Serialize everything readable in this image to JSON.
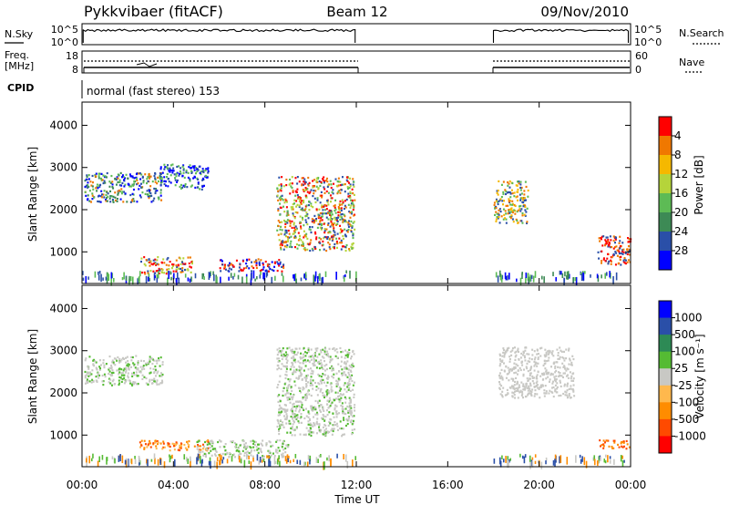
{
  "header": {
    "station": "Pykkvibaer (fitACF)",
    "beam": "Beam 12",
    "date": "09/Nov/2010"
  },
  "nsky_panel": {
    "left_label": "N.Sky",
    "left_ticks": [
      "10^5",
      "10^0"
    ],
    "right_label": "N.Search",
    "right_ticks": [
      "10^5",
      "10^0"
    ]
  },
  "freq_panel": {
    "left_label_1": "Freq.",
    "left_label_2": "[MHz]",
    "left_ticks": [
      "18",
      "8"
    ],
    "right_label": "Nave",
    "right_ticks": [
      "60",
      "0"
    ]
  },
  "cpid": {
    "label": "CPID",
    "text": "normal (fast stereo) 153"
  },
  "colors": {
    "power_scale": [
      "#0000ff",
      "#2a4fa8",
      "#3d8a55",
      "#5dbb55",
      "#b5d43a",
      "#f5b800",
      "#f07800",
      "#ff0000"
    ],
    "velocity_scale": [
      "#ff0000",
      "#ff4a00",
      "#ff8c00",
      "#ffb84d",
      "#c8c8c4",
      "#55bb33",
      "#2d8a55",
      "#2a4fa8",
      "#0000ff"
    ]
  },
  "chart_data": [
    {
      "type": "heatmap",
      "name": "power",
      "xlabel": "",
      "ylabel": "Slant Range [km]",
      "x_ticks": [
        "00:00",
        "04:00",
        "08:00",
        "12:00",
        "16:00",
        "20:00",
        "00:00"
      ],
      "y_ticks": [
        "1000",
        "2000",
        "3000",
        "4000"
      ],
      "ylim": [
        250,
        4550
      ],
      "colorbar_label": "Power [dB]",
      "colorbar_ticks": [
        "4",
        "8",
        "12",
        "16",
        "20",
        "24",
        "28"
      ],
      "data_gap_hours": [
        12,
        18
      ]
    },
    {
      "type": "heatmap",
      "name": "velocity",
      "xlabel": "Time UT",
      "ylabel": "Slant Range [km]",
      "x_ticks": [
        "00:00",
        "04:00",
        "08:00",
        "12:00",
        "16:00",
        "20:00",
        "00:00"
      ],
      "y_ticks": [
        "1000",
        "2000",
        "3000",
        "4000"
      ],
      "ylim": [
        250,
        4550
      ],
      "colorbar_label": "Velocity [m s⁻¹]",
      "colorbar_ticks": [
        "1000",
        "500",
        "100",
        "25",
        "-25",
        "-100",
        "-500",
        "-1000"
      ],
      "data_gap_hours": [
        12,
        18
      ]
    }
  ]
}
